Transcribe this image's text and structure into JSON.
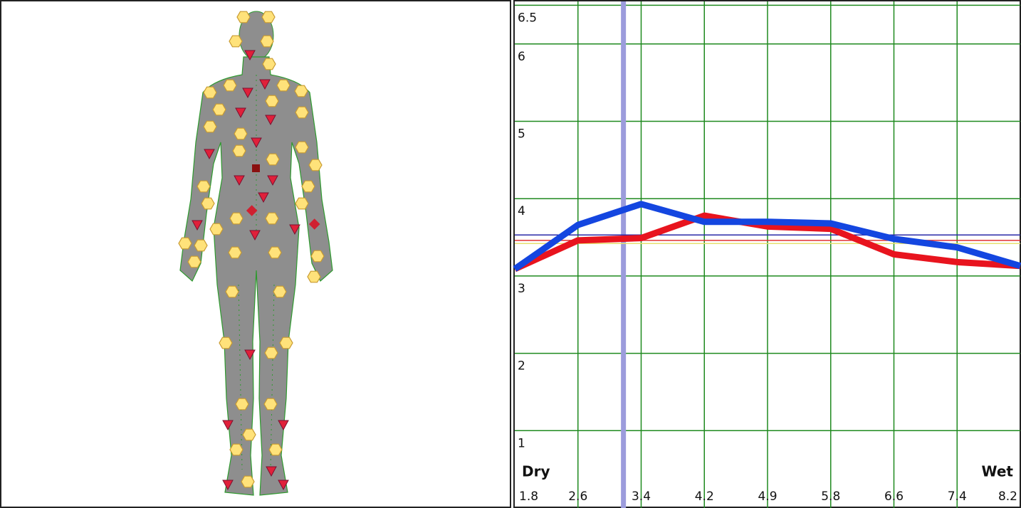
{
  "chart_data": {
    "type": "line",
    "categories": [
      "1.8",
      "2.6",
      "3.4",
      "4.2",
      "4.9",
      "5.8",
      "6.6",
      "7.4",
      "8.2"
    ],
    "series": [
      {
        "name": "Red",
        "color": "#e8141e",
        "values": [
          3.09,
          3.46,
          3.49,
          3.78,
          3.64,
          3.61,
          3.28,
          3.18,
          3.13
        ]
      },
      {
        "name": "Blue",
        "color": "#1446e0",
        "values": [
          3.09,
          3.66,
          3.93,
          3.7,
          3.7,
          3.68,
          3.48,
          3.37,
          3.13
        ]
      }
    ],
    "reference_lines": [
      {
        "value": 3.53,
        "color": "#2a2aa8"
      },
      {
        "value": 3.46,
        "color": "#e03030"
      },
      {
        "value": 3.42,
        "color": "#e6e070"
      }
    ],
    "cursor": {
      "x": 1.72,
      "color": "#9c9cdc"
    },
    "ylim": [
      0,
      6.55
    ],
    "yticks": [
      1,
      2,
      3,
      4,
      5,
      6,
      6.5
    ],
    "grid": true,
    "grid_color": "#1f8a1f",
    "left_label": "Dry",
    "left_label_color": "#a08458",
    "right_label": "Wet",
    "right_label_color": "#2a86e0"
  }
}
